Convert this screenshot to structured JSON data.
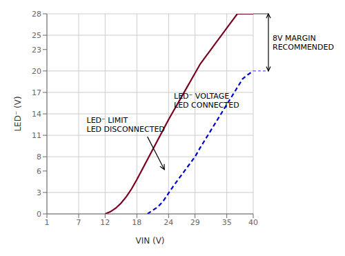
{
  "chart_data": {
    "type": "line",
    "xlabel": "VIN (V)",
    "ylabel": "LED⁻ (V)",
    "xlim": [
      1,
      40
    ],
    "ylim": [
      0,
      28
    ],
    "xticks": [
      1,
      7,
      12,
      18,
      24,
      29,
      35,
      40
    ],
    "yticks": [
      0,
      3,
      6,
      8,
      11,
      14,
      17,
      20,
      23,
      25,
      28
    ],
    "grid": true,
    "series": [
      {
        "color": "#7B0020",
        "line_style": "solid",
        "x": [
          12,
          13,
          14,
          15,
          16,
          17,
          18,
          19,
          20,
          21,
          22,
          23,
          24,
          25,
          26,
          27,
          28,
          29,
          30,
          31,
          32,
          33,
          34,
          35,
          36,
          37,
          38,
          39,
          40
        ],
        "values": [
          0,
          0.3,
          0.8,
          1.5,
          2.4,
          3.5,
          4.8,
          6.2,
          7.6,
          9.0,
          10.4,
          11.8,
          13.2,
          14.5,
          15.8,
          17.1,
          18.4,
          19.7,
          21.0,
          22.0,
          23.0,
          24.0,
          25.0,
          26.0,
          27.0,
          28.0,
          28.0,
          28.0,
          28.0
        ]
      },
      {
        "color": "#0000CC",
        "line_style": "dashed",
        "x": [
          20,
          21,
          22,
          23,
          24,
          25,
          26,
          27,
          28,
          29,
          30,
          31,
          32,
          33,
          34,
          35,
          36,
          37,
          38,
          39,
          40
        ],
        "values": [
          0,
          0.5,
          1.0,
          1.8,
          2.9,
          4.0,
          5.0,
          6.0,
          7.0,
          8.0,
          9.3,
          10.5,
          11.7,
          12.9,
          14.1,
          15.3,
          16.5,
          17.7,
          18.9,
          19.5,
          20.0
        ]
      }
    ],
    "annotations": [
      "LED⁻ VOLTAGE\nLED CONNECTED",
      "LED⁻ LIMIT\nLED DISCONNECTED",
      "8V MARGIN\nRECOMMENDED"
    ]
  }
}
